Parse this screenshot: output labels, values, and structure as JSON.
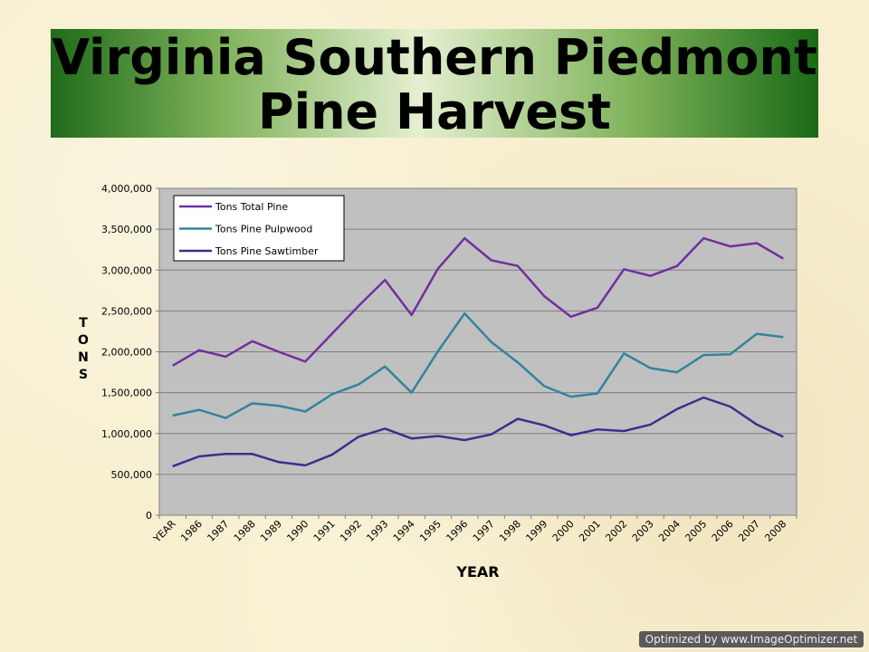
{
  "slide": {
    "title_line1": "Virginia Southern Piedmont",
    "title_line2": "Pine Harvest",
    "ylabel_letters": [
      "T",
      "O",
      "N",
      "S"
    ],
    "watermark": "Optimized by www.ImageOptimizer.net"
  },
  "colors": {
    "background": "#f7efcf",
    "plot_area": "#c0c0c0",
    "total_pine": "#7030a0",
    "pulpwood": "#31859c",
    "sawtimber": "#3b2f8f"
  },
  "chart_data": {
    "type": "line",
    "title": "",
    "xlabel": "YEAR",
    "ylabel": "TONS",
    "categories": [
      "YEAR",
      "1986",
      "1987",
      "1988",
      "1989",
      "1990",
      "1991",
      "1992",
      "1993",
      "1994",
      "1995",
      "1996",
      "1997",
      "1998",
      "1999",
      "2000",
      "2001",
      "2002",
      "2003",
      "2004",
      "2005",
      "2006",
      "2007",
      "2008"
    ],
    "ylim": [
      0,
      4000000
    ],
    "ytick_step": 500000,
    "ytick_labels": [
      "0",
      "500,000",
      "1,000,000",
      "1,500,000",
      "2,000,000",
      "2,500,000",
      "3,000,000",
      "3,500,000",
      "4,000,000"
    ],
    "grid": true,
    "legend_position": "top-left",
    "series": [
      {
        "name": "Tons Total Pine",
        "color": "#7030a0",
        "values": [
          1830000,
          2020000,
          1940000,
          2130000,
          2000000,
          1880000,
          2220000,
          2560000,
          2880000,
          2450000,
          3020000,
          3390000,
          3120000,
          3050000,
          2680000,
          2430000,
          2540000,
          3010000,
          2930000,
          3050000,
          3390000,
          3290000,
          3330000,
          3140000
        ]
      },
      {
        "name": "Tons Pine Pulpwood",
        "color": "#31859c",
        "values": [
          1220000,
          1290000,
          1190000,
          1370000,
          1340000,
          1270000,
          1480000,
          1600000,
          1820000,
          1500000,
          2010000,
          2470000,
          2120000,
          1870000,
          1580000,
          1450000,
          1490000,
          1980000,
          1800000,
          1750000,
          1960000,
          1970000,
          2220000,
          2180000
        ]
      },
      {
        "name": "Tons Pine Sawtimber",
        "color": "#3b2f8f",
        "values": [
          600000,
          720000,
          750000,
          750000,
          650000,
          610000,
          740000,
          960000,
          1060000,
          940000,
          970000,
          920000,
          990000,
          1180000,
          1100000,
          980000,
          1050000,
          1030000,
          1110000,
          1300000,
          1440000,
          1330000,
          1110000,
          960000
        ]
      }
    ]
  }
}
